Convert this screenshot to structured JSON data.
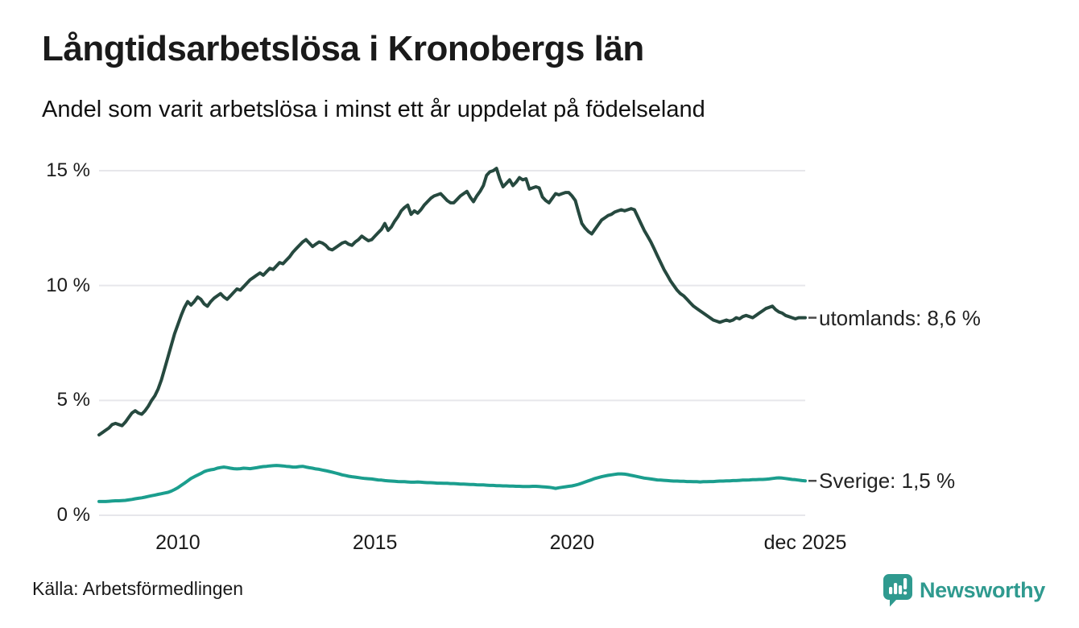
{
  "header": {
    "title": "Långtidsarbetslösa i Kronobergs län",
    "subtitle": "Andel som varit arbetslösa i minst ett år uppdelat på födelseland"
  },
  "footer": {
    "source": "Källa: Arbetsförmedlingen",
    "brand": "Newsworthy"
  },
  "colors": {
    "line_utomlands": "#26493f",
    "line_sverige": "#1b9e8e",
    "grid": "#e7e7eb",
    "text": "#1a1a1a",
    "connector": "#4a4a4a",
    "brand_teal": "#2f9a8f"
  },
  "chart_data": {
    "type": "line",
    "title": "Långtidsarbetslösa i Kronobergs län",
    "subtitle": "Andel som varit arbetslösa i minst ett år uppdelat på födelseland",
    "x_unit": "month",
    "x_start": "2008-01",
    "x_end": "2025-12",
    "ylim": [
      0,
      15
    ],
    "grid": "horizontal",
    "legend_position": "end-of-line",
    "y_ticks": [
      {
        "value": 0,
        "label": "0 %"
      },
      {
        "value": 5,
        "label": "5 %"
      },
      {
        "value": 10,
        "label": "10 %"
      },
      {
        "value": 15,
        "label": "15 %"
      }
    ],
    "x_ticks": [
      {
        "label": "2010",
        "month_index": 24
      },
      {
        "label": "2015",
        "month_index": 84
      },
      {
        "label": "2020",
        "month_index": 144
      },
      {
        "label": "dec 2025",
        "month_index": 215
      }
    ],
    "series": [
      {
        "name": "utomlands",
        "label": "utomlands: 8,6 %",
        "last_value": 8.6,
        "color": "#26493f",
        "values": [
          3.5,
          3.6,
          3.7,
          3.8,
          3.95,
          4.0,
          3.95,
          3.9,
          4.05,
          4.25,
          4.45,
          4.55,
          4.45,
          4.4,
          4.55,
          4.75,
          5.0,
          5.2,
          5.5,
          5.9,
          6.4,
          6.9,
          7.4,
          7.9,
          8.3,
          8.7,
          9.05,
          9.3,
          9.15,
          9.3,
          9.5,
          9.4,
          9.2,
          9.1,
          9.3,
          9.45,
          9.55,
          9.65,
          9.5,
          9.4,
          9.55,
          9.7,
          9.85,
          9.8,
          9.95,
          10.1,
          10.25,
          10.35,
          10.45,
          10.55,
          10.45,
          10.6,
          10.75,
          10.7,
          10.85,
          11.0,
          10.95,
          11.1,
          11.25,
          11.45,
          11.6,
          11.75,
          11.9,
          12.0,
          11.85,
          11.7,
          11.8,
          11.9,
          11.85,
          11.75,
          11.6,
          11.55,
          11.65,
          11.75,
          11.85,
          11.9,
          11.8,
          11.75,
          11.9,
          12.0,
          12.15,
          12.05,
          11.95,
          12.0,
          12.15,
          12.3,
          12.45,
          12.7,
          12.4,
          12.55,
          12.8,
          13.0,
          13.25,
          13.4,
          13.5,
          13.1,
          13.25,
          13.15,
          13.3,
          13.5,
          13.65,
          13.8,
          13.9,
          13.95,
          14.0,
          13.85,
          13.7,
          13.6,
          13.6,
          13.75,
          13.9,
          14.0,
          14.1,
          13.85,
          13.65,
          13.9,
          14.1,
          14.35,
          14.8,
          14.95,
          15.0,
          15.1,
          14.65,
          14.3,
          14.45,
          14.6,
          14.35,
          14.5,
          14.7,
          14.6,
          14.65,
          14.2,
          14.25,
          14.3,
          14.25,
          13.85,
          13.7,
          13.6,
          13.8,
          14.0,
          13.95,
          14.0,
          14.05,
          14.05,
          13.9,
          13.7,
          13.2,
          12.7,
          12.5,
          12.35,
          12.25,
          12.45,
          12.65,
          12.85,
          12.95,
          13.05,
          13.1,
          13.2,
          13.25,
          13.3,
          13.25,
          13.3,
          13.35,
          13.3,
          13.0,
          12.7,
          12.4,
          12.15,
          11.9,
          11.6,
          11.3,
          11.0,
          10.7,
          10.45,
          10.2,
          10.0,
          9.8,
          9.65,
          9.55,
          9.4,
          9.25,
          9.1,
          9.0,
          8.9,
          8.8,
          8.7,
          8.6,
          8.5,
          8.45,
          8.4,
          8.45,
          8.5,
          8.45,
          8.5,
          8.6,
          8.55,
          8.65,
          8.7,
          8.65,
          8.6,
          8.7,
          8.8,
          8.9,
          9.0,
          9.05,
          9.1,
          8.95,
          8.85,
          8.8,
          8.7,
          8.65,
          8.6,
          8.55,
          8.6,
          8.6,
          8.6
        ]
      },
      {
        "name": "Sverige",
        "label": "Sverige: 1,5 %",
        "last_value": 1.5,
        "color": "#1b9e8e",
        "values": [
          0.6,
          0.6,
          0.6,
          0.61,
          0.62,
          0.63,
          0.63,
          0.64,
          0.65,
          0.67,
          0.69,
          0.72,
          0.74,
          0.76,
          0.79,
          0.82,
          0.85,
          0.88,
          0.91,
          0.94,
          0.97,
          1.0,
          1.05,
          1.12,
          1.2,
          1.3,
          1.4,
          1.5,
          1.6,
          1.68,
          1.75,
          1.82,
          1.9,
          1.95,
          1.98,
          2.0,
          2.05,
          2.08,
          2.1,
          2.08,
          2.05,
          2.03,
          2.02,
          2.03,
          2.05,
          2.04,
          2.03,
          2.05,
          2.07,
          2.1,
          2.12,
          2.13,
          2.15,
          2.16,
          2.17,
          2.16,
          2.15,
          2.13,
          2.12,
          2.1,
          2.1,
          2.12,
          2.13,
          2.1,
          2.07,
          2.05,
          2.02,
          2.0,
          1.97,
          1.94,
          1.91,
          1.88,
          1.84,
          1.8,
          1.76,
          1.73,
          1.7,
          1.68,
          1.66,
          1.64,
          1.62,
          1.6,
          1.59,
          1.58,
          1.56,
          1.54,
          1.53,
          1.51,
          1.5,
          1.49,
          1.48,
          1.47,
          1.46,
          1.46,
          1.45,
          1.44,
          1.44,
          1.45,
          1.44,
          1.43,
          1.42,
          1.42,
          1.41,
          1.4,
          1.4,
          1.39,
          1.39,
          1.38,
          1.38,
          1.37,
          1.36,
          1.36,
          1.35,
          1.34,
          1.34,
          1.33,
          1.32,
          1.32,
          1.31,
          1.3,
          1.3,
          1.29,
          1.29,
          1.28,
          1.28,
          1.27,
          1.27,
          1.26,
          1.26,
          1.25,
          1.25,
          1.25,
          1.26,
          1.26,
          1.25,
          1.24,
          1.23,
          1.22,
          1.2,
          1.17,
          1.2,
          1.22,
          1.24,
          1.26,
          1.28,
          1.31,
          1.35,
          1.4,
          1.45,
          1.5,
          1.55,
          1.6,
          1.64,
          1.68,
          1.71,
          1.74,
          1.76,
          1.78,
          1.8,
          1.8,
          1.79,
          1.77,
          1.74,
          1.71,
          1.68,
          1.65,
          1.62,
          1.6,
          1.58,
          1.56,
          1.54,
          1.53,
          1.52,
          1.51,
          1.5,
          1.49,
          1.49,
          1.48,
          1.48,
          1.47,
          1.47,
          1.46,
          1.46,
          1.45,
          1.46,
          1.46,
          1.47,
          1.47,
          1.48,
          1.49,
          1.49,
          1.5,
          1.5,
          1.51,
          1.51,
          1.52,
          1.53,
          1.53,
          1.54,
          1.55,
          1.55,
          1.56,
          1.56,
          1.57,
          1.58,
          1.6,
          1.62,
          1.63,
          1.62,
          1.6,
          1.58,
          1.56,
          1.55,
          1.53,
          1.51,
          1.5
        ]
      }
    ]
  }
}
